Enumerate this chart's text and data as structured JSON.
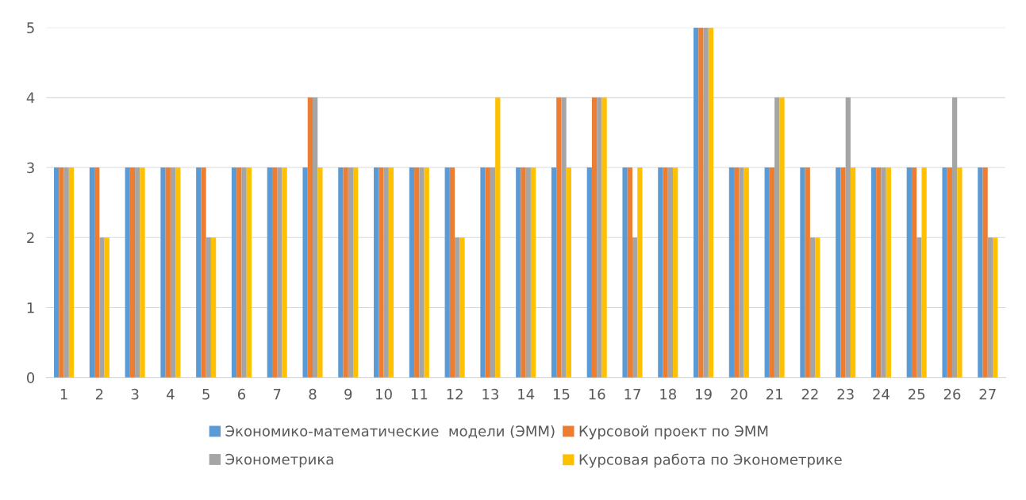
{
  "chart_data": {
    "type": "bar",
    "categories": [
      "1",
      "2",
      "3",
      "4",
      "5",
      "6",
      "7",
      "8",
      "9",
      "10",
      "11",
      "12",
      "13",
      "14",
      "15",
      "16",
      "17",
      "18",
      "19",
      "20",
      "21",
      "22",
      "23",
      "24",
      "25",
      "26",
      "27"
    ],
    "series": [
      {
        "name": "Экономико-математические  модели (ЭММ)",
        "color": "#5b9bd5",
        "values": [
          3,
          3,
          3,
          3,
          3,
          3,
          3,
          3,
          3,
          3,
          3,
          3,
          3,
          3,
          3,
          3,
          3,
          3,
          5,
          3,
          3,
          3,
          3,
          3,
          3,
          3,
          3
        ]
      },
      {
        "name": "Курсовой проект по ЭММ",
        "color": "#ed7d31",
        "values": [
          3,
          3,
          3,
          3,
          3,
          3,
          3,
          4,
          3,
          3,
          3,
          3,
          3,
          3,
          4,
          4,
          3,
          3,
          5,
          3,
          3,
          3,
          3,
          3,
          3,
          3,
          3
        ]
      },
      {
        "name": "Эконометрика",
        "color": "#a5a5a5",
        "values": [
          3,
          2,
          3,
          3,
          2,
          3,
          3,
          4,
          3,
          3,
          3,
          2,
          3,
          3,
          4,
          4,
          2,
          3,
          5,
          3,
          4,
          2,
          4,
          3,
          2,
          4,
          2
        ]
      },
      {
        "name": "Курсовая работа по Эконометрике",
        "color": "#ffc000",
        "values": [
          3,
          2,
          3,
          3,
          2,
          3,
          3,
          3,
          3,
          3,
          3,
          2,
          4,
          3,
          3,
          4,
          3,
          3,
          5,
          3,
          4,
          2,
          3,
          3,
          3,
          3,
          2
        ]
      }
    ],
    "ylim": [
      0,
      5
    ],
    "yticks": [
      0,
      1,
      2,
      3,
      4,
      5
    ],
    "grid": "y",
    "legend": "bottom"
  }
}
